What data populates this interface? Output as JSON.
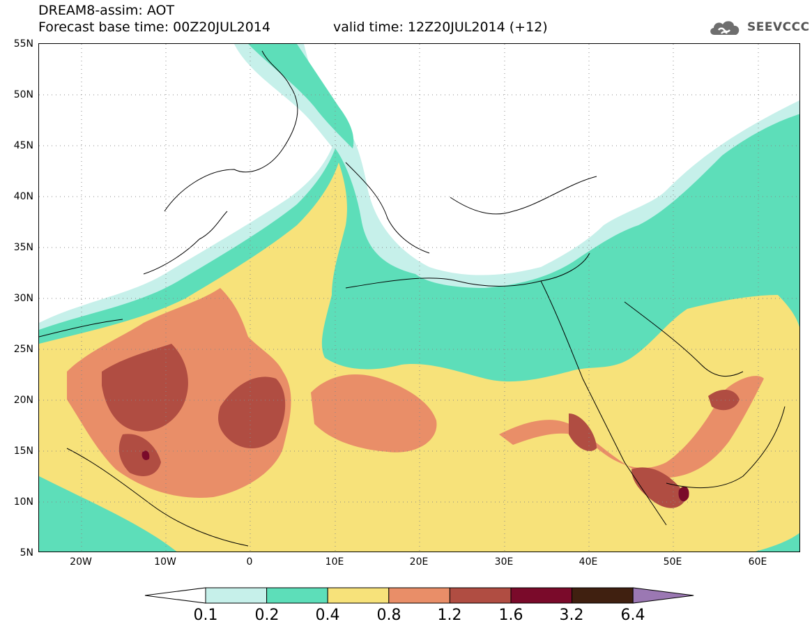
{
  "header": {
    "title_line1": "DREAM8-assim: AOT",
    "title_line2": "Forecast base time: 00Z20JUL2014",
    "valid_time": "valid time: 12Z20JUL2014 (+12)",
    "brand": "SEEVCCC",
    "brand_icon": "cloud-logo-icon"
  },
  "map": {
    "lat_labels": [
      "55N",
      "50N",
      "45N",
      "40N",
      "35N",
      "30N",
      "25N",
      "20N",
      "15N",
      "10N",
      "5N"
    ],
    "lon_labels": [
      "20W",
      "10W",
      "0",
      "10E",
      "20E",
      "30E",
      "40E",
      "50E",
      "60E"
    ],
    "extent": {
      "lon": [
        -25,
        65
      ],
      "lat": [
        5,
        55
      ]
    },
    "grid": "dotted"
  },
  "colorbar": {
    "labels": [
      "0.1",
      "0.2",
      "0.4",
      "0.8",
      "1.2",
      "1.6",
      "3.2",
      "6.4"
    ],
    "colors": [
      "#ffffff",
      "#c6f0ea",
      "#5ddeb9",
      "#f7e27a",
      "#e98e68",
      "#b04d42",
      "#7a0a2a",
      "#402010",
      "#9b78b3"
    ]
  }
}
